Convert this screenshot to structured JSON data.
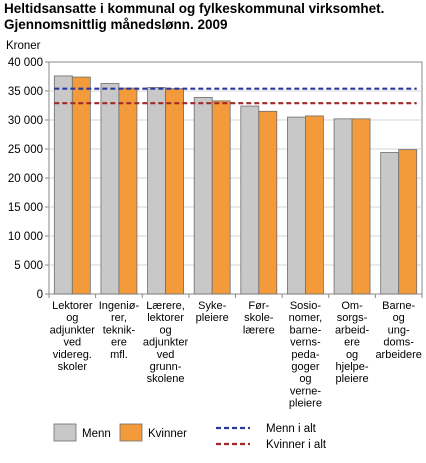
{
  "title_lines": [
    "Heltidsansatte i kommunal og fylkeskommunal virksomhet.",
    "Gjennomsnittlig månedslønn. 2009"
  ],
  "chart_data": {
    "type": "bar",
    "ylabel": "Kroner",
    "ylim": [
      0,
      40000
    ],
    "yticks": [
      0,
      5000,
      10000,
      15000,
      20000,
      25000,
      30000,
      35000,
      40000
    ],
    "ytick_labels": [
      "0",
      "5 000",
      "10 000",
      "15 000",
      "20 000",
      "25 000",
      "30 000",
      "35 000",
      "40 000"
    ],
    "grid": true,
    "legend_position": "bottom",
    "categories": [
      [
        "Lektorer",
        "og",
        "adjunkter",
        "ved",
        "videreg.",
        "skoler"
      ],
      [
        "Ingeniø-",
        "rer,",
        "teknik-",
        "ere",
        "mfl."
      ],
      [
        "Lærere,",
        "lektorer",
        "og",
        "adjunkter",
        "ved",
        "grunn-",
        "skolene"
      ],
      [
        "Syke-",
        "pleiere"
      ],
      [
        "Før-",
        "skole-",
        "lærere"
      ],
      [
        "Sosio-",
        "nomer,",
        "barne-",
        "verns-",
        "peda-",
        "goger",
        "og",
        "verne-",
        "pleiere"
      ],
      [
        "Om-",
        "sorgs-",
        "arbeid-",
        "ere",
        "og",
        "hjelpe-",
        "pleiere"
      ],
      [
        "Barne-",
        "og",
        "ung-",
        "doms-",
        "arbeidere"
      ]
    ],
    "series": [
      {
        "name": "Menn",
        "color": "#c8c8c8",
        "values": [
          37600,
          36300,
          35600,
          33900,
          32400,
          30500,
          30200,
          24400
        ]
      },
      {
        "name": "Kvinner",
        "color": "#f39a3a",
        "values": [
          37400,
          35500,
          35400,
          33300,
          31500,
          30700,
          30200,
          24900
        ]
      }
    ],
    "reference_lines": [
      {
        "name": "Menn i alt",
        "value": 35400,
        "color": "#2a3a9a"
      },
      {
        "name": "Kvinner i alt",
        "value": 32900,
        "color": "#a02a2a"
      }
    ]
  }
}
